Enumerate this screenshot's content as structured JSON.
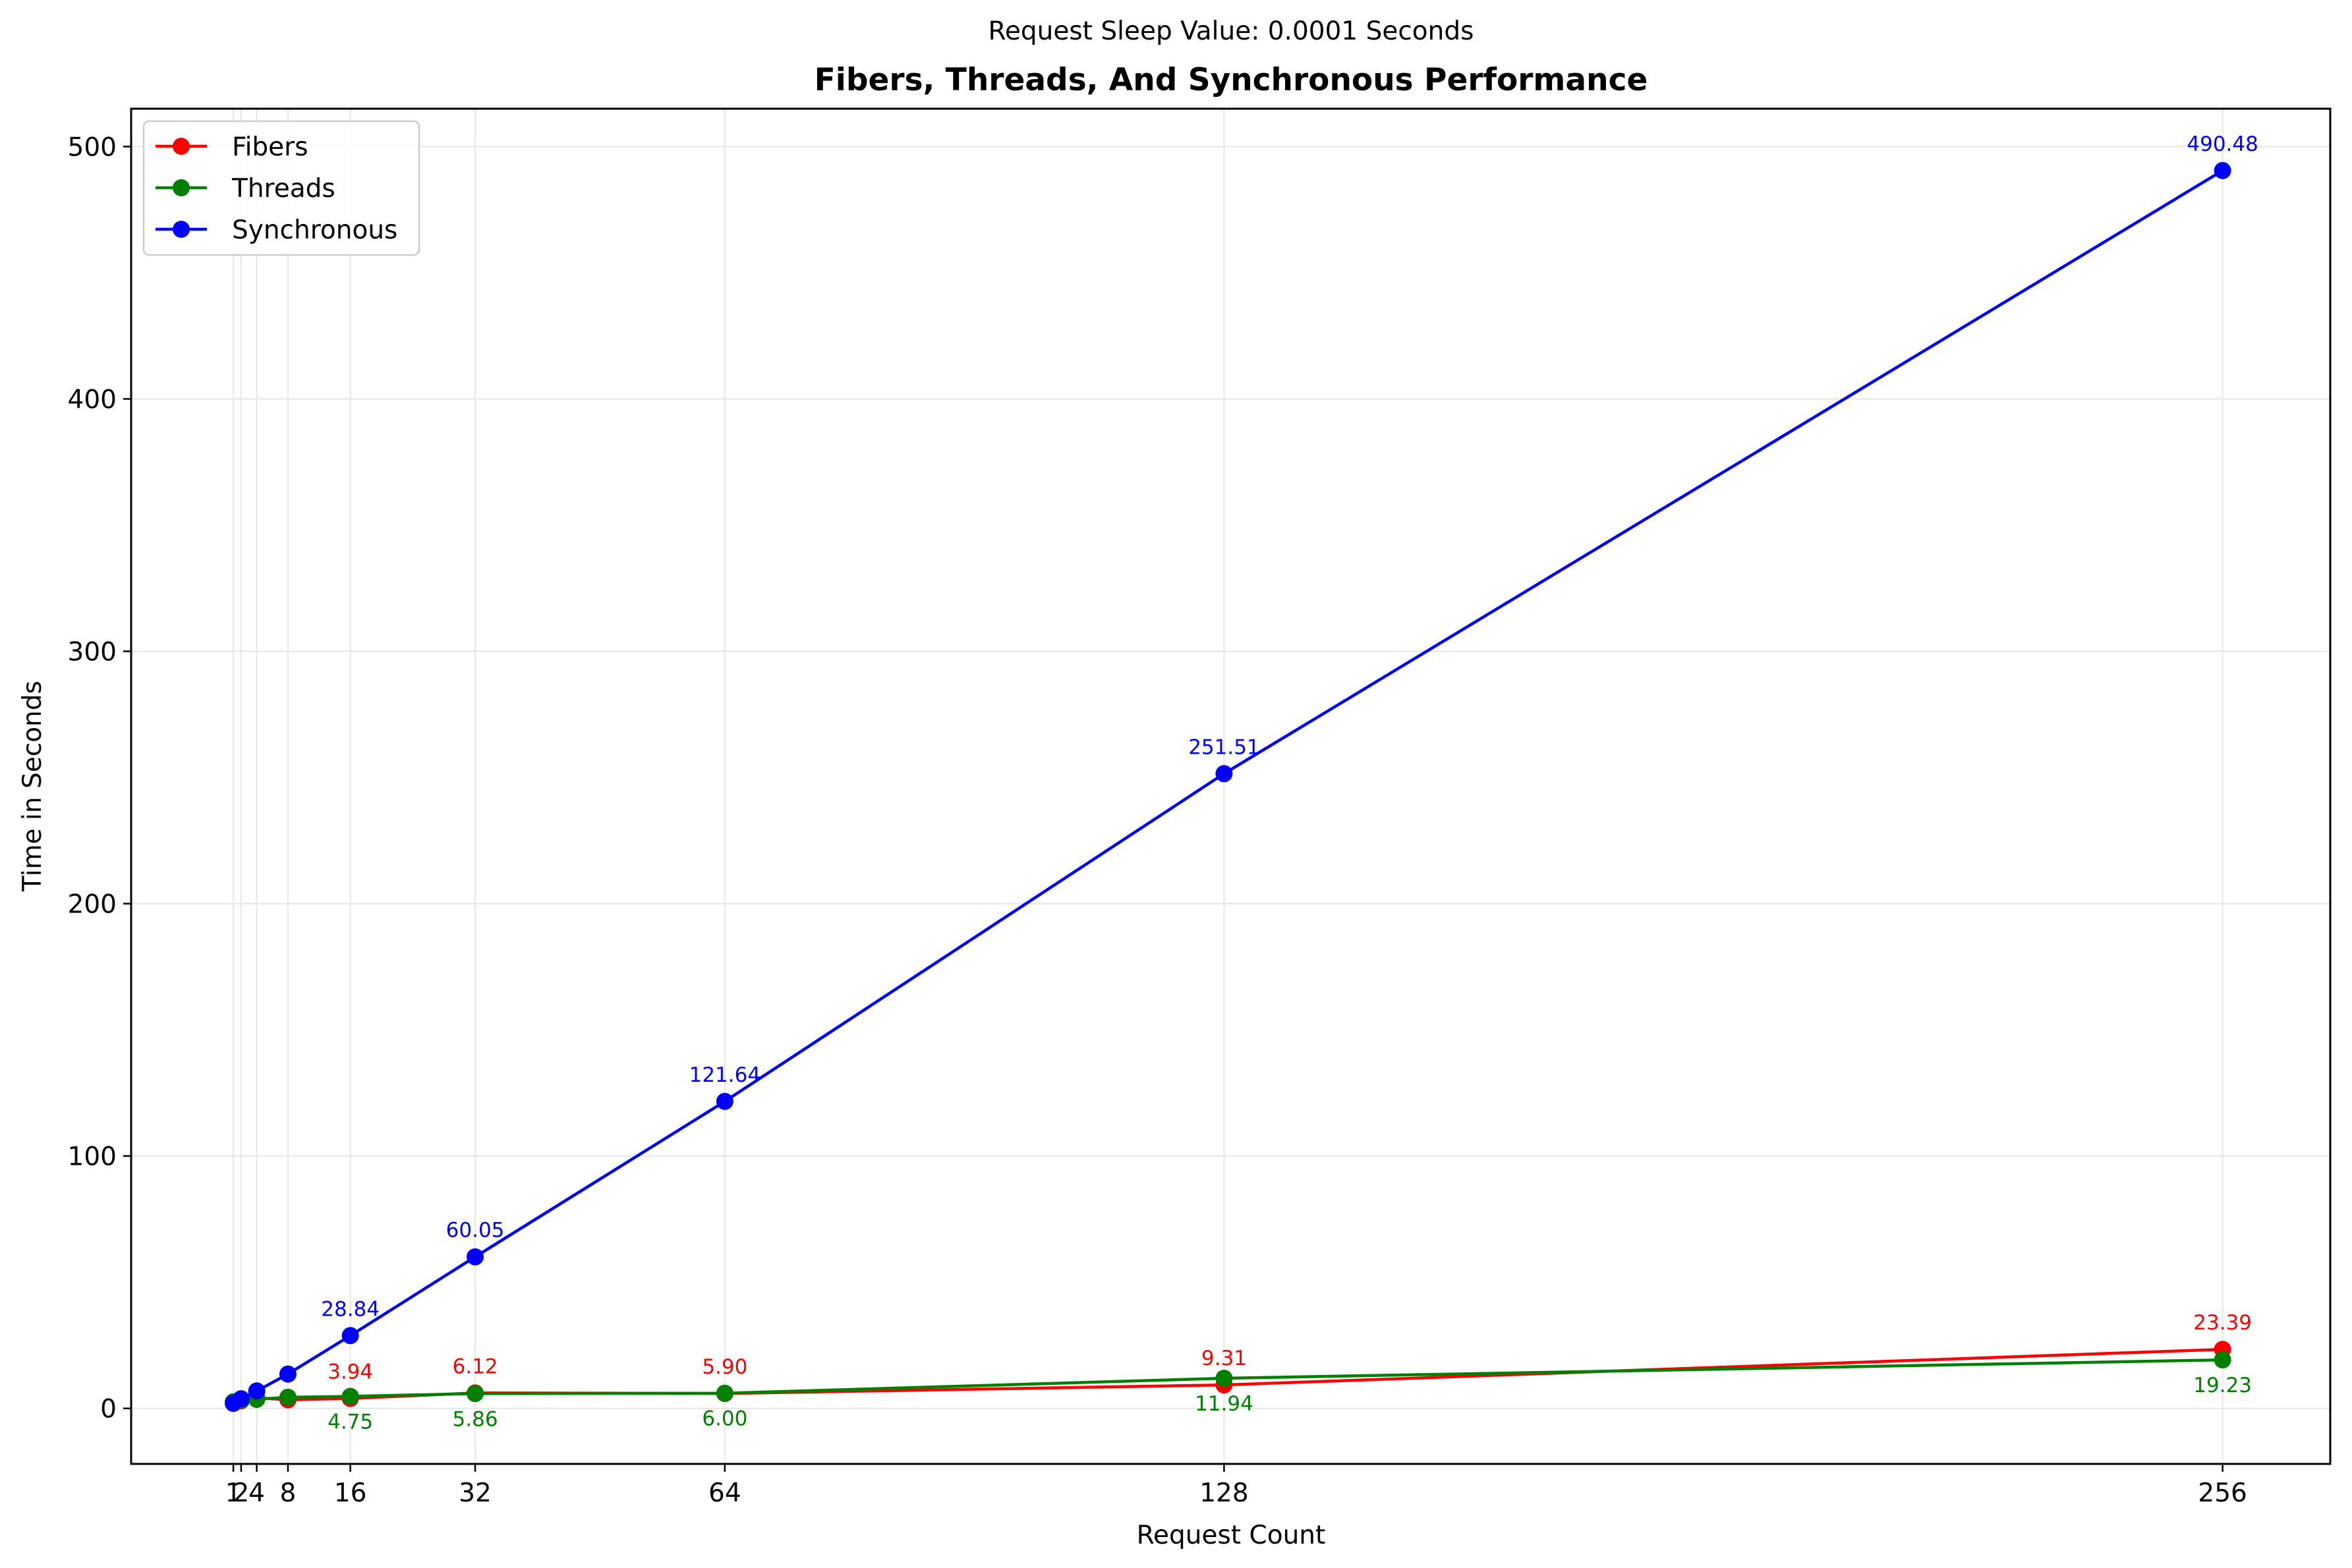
{
  "chart_data": {
    "type": "line",
    "suptitle": "Request Sleep Value: 0.0001 Seconds",
    "title": "Fibers, Threads, And Synchronous Performance",
    "xlabel": "Request Count",
    "ylabel": "Time in Seconds",
    "x": [
      1,
      2,
      4,
      8,
      16,
      32,
      64,
      128,
      256
    ],
    "x_tick_labels": [
      "1",
      "2",
      "4",
      "8",
      "16",
      "32",
      "64",
      "128",
      "256"
    ],
    "xlim": [
      -12.1,
      269.8
    ],
    "ylim": [
      -22,
      515
    ],
    "y_ticks": [
      0,
      100,
      200,
      300,
      400,
      500
    ],
    "grid": true,
    "legend_position": "upper-left",
    "series": [
      {
        "name": "Fibers",
        "color": "#ff0000",
        "values": [
          2.3,
          3.0,
          4.2,
          3.4,
          3.94,
          6.12,
          5.9,
          9.31,
          23.39
        ],
        "labeled_points": [
          {
            "x": 16,
            "value": 3.94,
            "label": "3.94",
            "position": "above"
          },
          {
            "x": 32,
            "value": 6.12,
            "label": "6.12",
            "position": "above"
          },
          {
            "x": 64,
            "value": 5.9,
            "label": "5.90",
            "position": "above"
          },
          {
            "x": 128,
            "value": 9.31,
            "label": "9.31",
            "position": "above"
          },
          {
            "x": 256,
            "value": 23.39,
            "label": "23.39",
            "position": "above"
          }
        ]
      },
      {
        "name": "Threads",
        "color": "#008000",
        "values": [
          2.6,
          3.2,
          3.6,
          4.4,
          4.75,
          5.86,
          6.0,
          11.94,
          19.23
        ],
        "labeled_points": [
          {
            "x": 16,
            "value": 4.75,
            "label": "4.75",
            "position": "below"
          },
          {
            "x": 32,
            "value": 5.86,
            "label": "5.86",
            "position": "below"
          },
          {
            "x": 64,
            "value": 6.0,
            "label": "6.00",
            "position": "below"
          },
          {
            "x": 128,
            "value": 11.94,
            "label": "11.94",
            "position": "below"
          },
          {
            "x": 256,
            "value": 19.23,
            "label": "19.23",
            "position": "below"
          }
        ]
      },
      {
        "name": "Synchronous",
        "color": "#0000ff",
        "values": [
          2.0,
          3.8,
          6.9,
          13.6,
          28.84,
          60.05,
          121.64,
          251.51,
          490.48
        ],
        "labeled_points": [
          {
            "x": 16,
            "value": 28.84,
            "label": "28.84",
            "position": "above"
          },
          {
            "x": 32,
            "value": 60.05,
            "label": "60.05",
            "position": "above"
          },
          {
            "x": 64,
            "value": 121.64,
            "label": "121.64",
            "position": "above"
          },
          {
            "x": 128,
            "value": 251.51,
            "label": "251.51",
            "position": "above"
          },
          {
            "x": 256,
            "value": 490.48,
            "label": "490.48",
            "position": "above"
          }
        ]
      }
    ]
  }
}
